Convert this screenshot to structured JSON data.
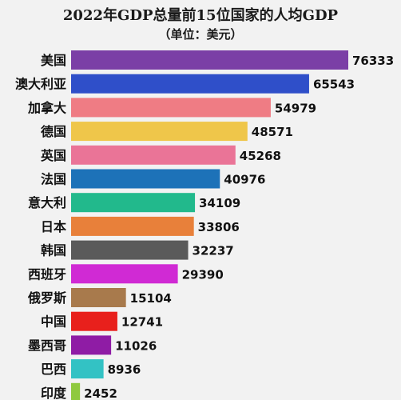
{
  "chart_data": {
    "type": "bar",
    "orientation": "horizontal",
    "title": "2022年GDP总量前15位国家的人均GDP",
    "subtitle": "（单位：美元）",
    "categories": [
      "美国",
      "澳大利亚",
      "加拿大",
      "德国",
      "英国",
      "法国",
      "意大利",
      "日本",
      "韩国",
      "西班牙",
      "俄罗斯",
      "中国",
      "墨西哥",
      "巴西",
      "印度"
    ],
    "values": [
      76333,
      65543,
      54979,
      48571,
      45268,
      40976,
      34109,
      33806,
      32237,
      29390,
      15104,
      12741,
      11026,
      8936,
      2452
    ],
    "value_labels": [
      "76333",
      "65543",
      "54979",
      "48571",
      "45268",
      "40976",
      "34109",
      "33806",
      "32237",
      "29390",
      "15104",
      "12741",
      "11026",
      "8936",
      "2452"
    ],
    "colors": [
      "#7b3fa6",
      "#2f4fc9",
      "#ef7c84",
      "#efc64a",
      "#ea7497",
      "#1d72b8",
      "#22b98c",
      "#e8803a",
      "#5a5a5a",
      "#d02ad4",
      "#a87a4c",
      "#e8201c",
      "#8f1ca5",
      "#33c2c4",
      "#8fc93f"
    ],
    "xlim": [
      0,
      76333
    ],
    "grid": false,
    "legend": "none"
  }
}
